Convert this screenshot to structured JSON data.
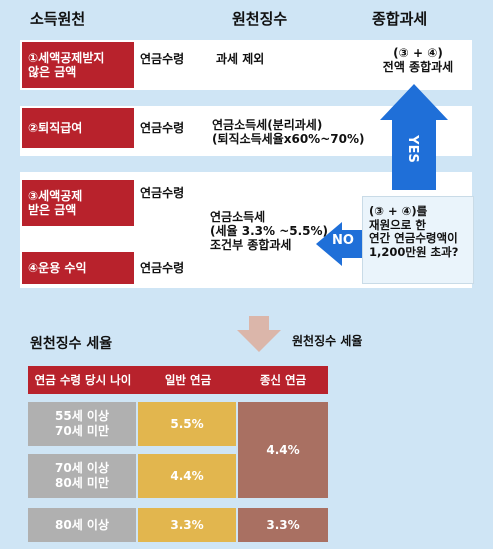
{
  "headers": {
    "source": "소득원천",
    "withholding": "원천징수",
    "comprehensive": "종합과세"
  },
  "rows": [
    {
      "source": "①세액공제받지\n않은 금액",
      "receipt": "연금수령",
      "withholding": "과세 제외",
      "comprehensive": "(③ + ④)\n전액 종합과세"
    },
    {
      "source": "②퇴직급여",
      "receipt": "연금수령",
      "withholding": "연금소득세(분리과세)\n(퇴직소득세율x60%~70%)"
    },
    {
      "source": "③세액공제\n받은 금액",
      "receipt": "연금수령"
    },
    {
      "source": "④운용 수익",
      "receipt": "연금수령"
    }
  ],
  "merged_withholding": "연금소득세\n(세율 3.3% ~5.5%)\n조건부 종합과세",
  "question": "(③ + ④)를\n재원으로 한\n연간 연금수령액이\n1,200만원 초과?",
  "yes_label": "YES",
  "no_label": "NO",
  "down_arrow_label": "원천징수 세율",
  "rate_table": {
    "title": "원천징수 세율",
    "columns": [
      "연금 수령 당시 나이",
      "일반 연금",
      "종신 연금"
    ],
    "rows": [
      {
        "age": "55세 이상\n70세 미만",
        "general": "5.5%"
      },
      {
        "age": "70세 이상\n80세 미만",
        "general": "4.4%"
      },
      {
        "age": "80세 이상",
        "general": "3.3%",
        "lifetime": "3.3%"
      }
    ],
    "lifetime_merged": "4.4%"
  },
  "colors": {
    "panel_bg": "#cfe5f5",
    "red": "#b8222c",
    "arrow_blue": "#1f6fd8",
    "gray": "#b0b0b0",
    "gold": "#e2b64e",
    "brown": "#a97062"
  }
}
